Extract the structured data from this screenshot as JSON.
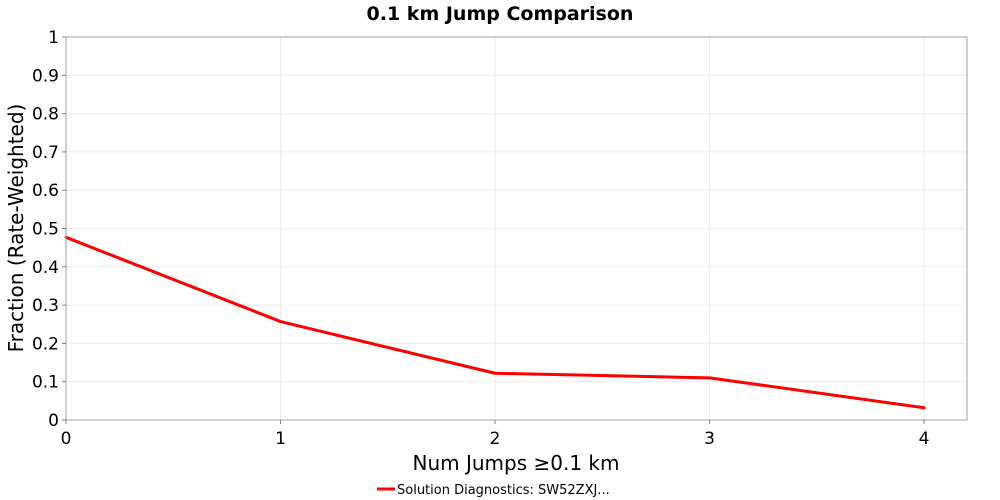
{
  "chart_data": {
    "type": "line",
    "title": "0.1 km Jump Comparison",
    "xlabel": "Num Jumps ≥0.1 km",
    "ylabel": "Fraction (Rate-Weighted)",
    "xlim": [
      0,
      4.2
    ],
    "ylim": [
      0,
      1
    ],
    "x_ticks": [
      0,
      1,
      2,
      3,
      4
    ],
    "y_ticks": [
      0,
      0.1,
      0.2,
      0.3,
      0.4,
      0.5,
      0.6,
      0.7,
      0.8,
      0.9,
      1
    ],
    "x_tick_labels": [
      "0",
      "1",
      "2",
      "3",
      "4"
    ],
    "y_tick_labels": [
      "0",
      "0.1",
      "0.2",
      "0.3",
      "0.4",
      "0.5",
      "0.6",
      "0.7",
      "0.8",
      "0.9",
      "1"
    ],
    "grid": true,
    "legend_position": "bottom-center",
    "series": [
      {
        "name": "Solution Diagnostics: SW52ZXJ...",
        "color": "#ff0000",
        "x": [
          0,
          1,
          2,
          3,
          4
        ],
        "y": [
          0.477,
          0.257,
          0.122,
          0.11,
          0.032
        ]
      }
    ]
  }
}
